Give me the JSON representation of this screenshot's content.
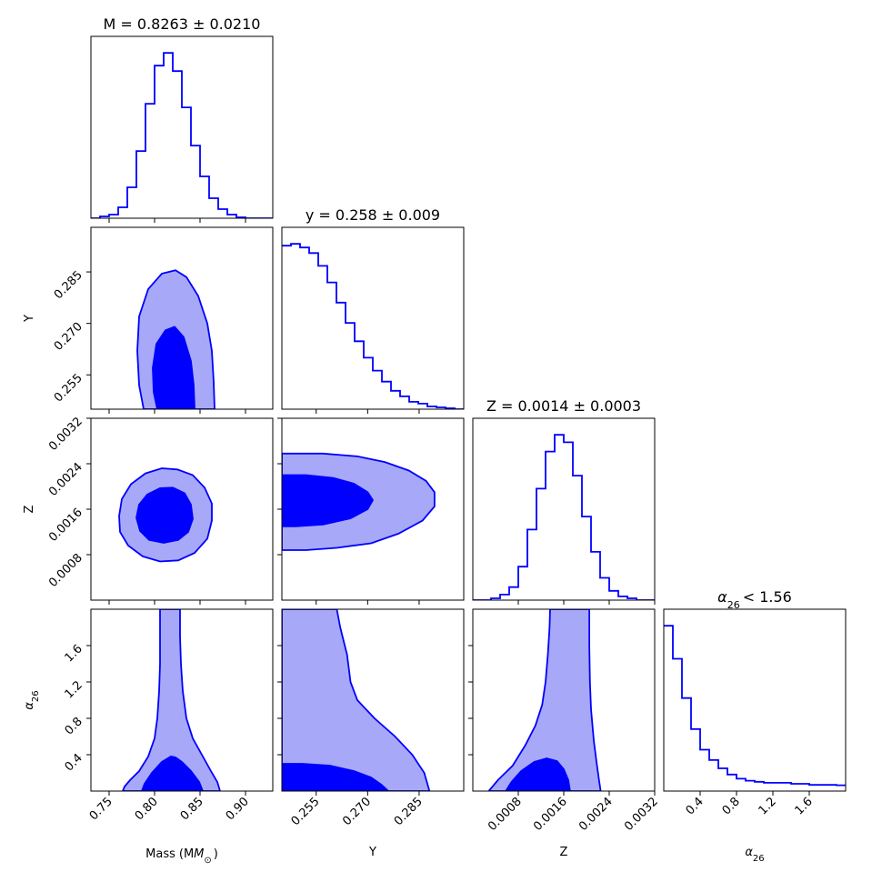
{
  "chart_data": {
    "type": "corner",
    "colors": {
      "line": "#0000ff",
      "fill_outer": "#a8a8f8",
      "fill_inner": "#0000ff",
      "frame": "#000000"
    },
    "titles": {
      "m": "M = 0.8263 ± 0.0210",
      "y": "y = 0.258 ± 0.009",
      "z": "Z = 0.0014 ± 0.0003",
      "a": "< 1.56"
    },
    "axis_labels": {
      "m": "Mass",
      "y": "Y",
      "z": "Z",
      "a": "α",
      "a_sub": "26",
      "m_unit": "(M",
      "m_unit_sub": "⊙",
      "m_unit_close": ")"
    },
    "params": [
      {
        "key": "m",
        "range": [
          0.73,
          0.93
        ],
        "ticks": [
          0.75,
          0.8,
          0.85,
          0.9
        ],
        "tick_labels": [
          "0.75",
          "0.80",
          "0.85",
          "0.90"
        ]
      },
      {
        "key": "y",
        "range": [
          0.245,
          0.298
        ],
        "ticks": [
          0.255,
          0.27,
          0.285
        ],
        "tick_labels": [
          "0.255",
          "0.270",
          "0.285"
        ]
      },
      {
        "key": "z",
        "range": [
          0.0,
          0.0032
        ],
        "ticks": [
          0.0008,
          0.0016,
          0.0024,
          0.0032
        ],
        "tick_labels": [
          "0.0008",
          "0.0016",
          "0.0024",
          "0.0032"
        ]
      },
      {
        "key": "a",
        "range": [
          0.0,
          2.0
        ],
        "ticks": [
          0.4,
          0.8,
          1.2,
          1.6
        ],
        "tick_labels": [
          "0.4",
          "0.8",
          "1.2",
          "1.6"
        ]
      }
    ],
    "histograms": {
      "m": {
        "edges_start": 0.73,
        "bin_width": 0.01,
        "counts": [
          0.0,
          0.01,
          0.02,
          0.06,
          0.17,
          0.37,
          0.63,
          0.84,
          0.91,
          0.81,
          0.61,
          0.4,
          0.23,
          0.11,
          0.05,
          0.02,
          0.005,
          0.0,
          0.0,
          0.0
        ]
      },
      "y": {
        "edges_start": 0.245,
        "bin_width": 0.00265,
        "counts": [
          0.89,
          0.9,
          0.88,
          0.85,
          0.78,
          0.69,
          0.58,
          0.47,
          0.37,
          0.28,
          0.21,
          0.15,
          0.1,
          0.07,
          0.04,
          0.03,
          0.015,
          0.01,
          0.005,
          0.0
        ]
      },
      "z": {
        "edges_start": 0.0,
        "bin_width": 0.00016,
        "counts": [
          0.0,
          0.0,
          0.01,
          0.03,
          0.07,
          0.18,
          0.38,
          0.6,
          0.8,
          0.89,
          0.85,
          0.67,
          0.45,
          0.26,
          0.12,
          0.05,
          0.02,
          0.01,
          0.0,
          0.0
        ]
      },
      "a": {
        "edges_start": 0.0,
        "bin_width": 0.1,
        "counts": [
          0.8,
          0.64,
          0.45,
          0.3,
          0.2,
          0.15,
          0.11,
          0.08,
          0.06,
          0.05,
          0.045,
          0.04,
          0.04,
          0.04,
          0.035,
          0.035,
          0.03,
          0.03,
          0.03,
          0.028
        ]
      }
    },
    "contours": {
      "y_m": {
        "outer": [
          [
            0.788,
            0.245
          ],
          [
            0.783,
            0.252
          ],
          [
            0.781,
            0.262
          ],
          [
            0.783,
            0.272
          ],
          [
            0.793,
            0.28
          ],
          [
            0.808,
            0.2845
          ],
          [
            0.823,
            0.2855
          ],
          [
            0.835,
            0.2835
          ],
          [
            0.848,
            0.278
          ],
          [
            0.858,
            0.27
          ],
          [
            0.863,
            0.262
          ],
          [
            0.865,
            0.253
          ],
          [
            0.866,
            0.245
          ]
        ],
        "inner": [
          [
            0.803,
            0.245
          ],
          [
            0.799,
            0.25
          ],
          [
            0.798,
            0.257
          ],
          [
            0.802,
            0.264
          ],
          [
            0.812,
            0.268
          ],
          [
            0.822,
            0.269
          ],
          [
            0.832,
            0.266
          ],
          [
            0.84,
            0.259
          ],
          [
            0.843,
            0.252
          ],
          [
            0.844,
            0.245
          ]
        ]
      },
      "z_m": {
        "outer": [
          [
            0.761,
            0.00148
          ],
          [
            0.764,
            0.00178
          ],
          [
            0.774,
            0.00204
          ],
          [
            0.79,
            0.00223
          ],
          [
            0.808,
            0.00232
          ],
          [
            0.825,
            0.0023
          ],
          [
            0.842,
            0.0022
          ],
          [
            0.855,
            0.00198
          ],
          [
            0.863,
            0.0017
          ],
          [
            0.863,
            0.0014
          ],
          [
            0.858,
            0.00108
          ],
          [
            0.844,
            0.00083
          ],
          [
            0.826,
            0.0007
          ],
          [
            0.806,
            0.00068
          ],
          [
            0.787,
            0.00077
          ],
          [
            0.771,
            0.00096
          ],
          [
            0.762,
            0.0012
          ]
        ],
        "inner": [
          [
            0.78,
            0.00145
          ],
          [
            0.783,
            0.00168
          ],
          [
            0.792,
            0.00186
          ],
          [
            0.806,
            0.00197
          ],
          [
            0.82,
            0.00198
          ],
          [
            0.833,
            0.00188
          ],
          [
            0.84,
            0.00168
          ],
          [
            0.842,
            0.00143
          ],
          [
            0.837,
            0.0012
          ],
          [
            0.826,
            0.00106
          ],
          [
            0.81,
            0.00101
          ],
          [
            0.794,
            0.00106
          ],
          [
            0.784,
            0.00122
          ]
        ]
      },
      "a_m": {
        "outer": [
          [
            0.765,
            0.0
          ],
          [
            0.767,
            0.05
          ],
          [
            0.773,
            0.12
          ],
          [
            0.783,
            0.22
          ],
          [
            0.793,
            0.38
          ],
          [
            0.8,
            0.58
          ],
          [
            0.803,
            0.8
          ],
          [
            0.805,
            1.1
          ],
          [
            0.806,
            1.4
          ],
          [
            0.806,
            1.7
          ],
          [
            0.806,
            2.0
          ],
          [
            0.828,
            2.0
          ],
          [
            0.828,
            1.7
          ],
          [
            0.829,
            1.4
          ],
          [
            0.831,
            1.1
          ],
          [
            0.835,
            0.8
          ],
          [
            0.842,
            0.58
          ],
          [
            0.852,
            0.4
          ],
          [
            0.862,
            0.22
          ],
          [
            0.869,
            0.1
          ],
          [
            0.872,
            0.0
          ]
        ],
        "inner": [
          [
            0.786,
            0.0
          ],
          [
            0.789,
            0.08
          ],
          [
            0.797,
            0.2
          ],
          [
            0.808,
            0.32
          ],
          [
            0.818,
            0.38
          ],
          [
            0.823,
            0.37
          ],
          [
            0.83,
            0.32
          ],
          [
            0.84,
            0.22
          ],
          [
            0.849,
            0.1
          ],
          [
            0.853,
            0.0
          ]
        ]
      },
      "z_y": {
        "outer": [
          [
            0.245,
            0.00258
          ],
          [
            0.257,
            0.00258
          ],
          [
            0.267,
            0.00253
          ],
          [
            0.275,
            0.00243
          ],
          [
            0.282,
            0.00228
          ],
          [
            0.287,
            0.0021
          ],
          [
            0.2895,
            0.0019
          ],
          [
            0.2895,
            0.00165
          ],
          [
            0.286,
            0.0014
          ],
          [
            0.279,
            0.00117
          ],
          [
            0.271,
            0.001
          ],
          [
            0.261,
            0.00092
          ],
          [
            0.252,
            0.00088
          ],
          [
            0.245,
            0.00088
          ]
        ],
        "inner": [
          [
            0.245,
            0.0022
          ],
          [
            0.252,
            0.0022
          ],
          [
            0.26,
            0.00215
          ],
          [
            0.266,
            0.00205
          ],
          [
            0.27,
            0.0019
          ],
          [
            0.2715,
            0.00176
          ],
          [
            0.27,
            0.0016
          ],
          [
            0.265,
            0.00144
          ],
          [
            0.257,
            0.00133
          ],
          [
            0.249,
            0.0013
          ],
          [
            0.245,
            0.0013
          ]
        ]
      },
      "a_y": {
        "outer": [
          [
            0.245,
            0.0
          ],
          [
            0.245,
            2.0
          ],
          [
            0.261,
            2.0
          ],
          [
            0.262,
            1.8
          ],
          [
            0.264,
            1.5
          ],
          [
            0.265,
            1.2
          ],
          [
            0.267,
            1.0
          ],
          [
            0.272,
            0.8
          ],
          [
            0.278,
            0.6
          ],
          [
            0.283,
            0.4
          ],
          [
            0.2865,
            0.2
          ],
          [
            0.288,
            0.0
          ]
        ],
        "inner": [
          [
            0.245,
            0.0
          ],
          [
            0.245,
            0.3
          ],
          [
            0.251,
            0.3
          ],
          [
            0.259,
            0.28
          ],
          [
            0.266,
            0.22
          ],
          [
            0.271,
            0.15
          ],
          [
            0.274,
            0.07
          ],
          [
            0.276,
            0.0
          ]
        ]
      },
      "a_z": {
        "outer": [
          [
            0.00028,
            0.0
          ],
          [
            0.00044,
            0.12
          ],
          [
            0.0007,
            0.28
          ],
          [
            0.00092,
            0.5
          ],
          [
            0.0011,
            0.72
          ],
          [
            0.00122,
            0.95
          ],
          [
            0.00128,
            1.2
          ],
          [
            0.00132,
            1.5
          ],
          [
            0.00135,
            1.8
          ],
          [
            0.00136,
            2.0
          ],
          [
            0.00205,
            2.0
          ],
          [
            0.00205,
            1.6
          ],
          [
            0.00206,
            1.2
          ],
          [
            0.00208,
            0.9
          ],
          [
            0.00213,
            0.55
          ],
          [
            0.00218,
            0.3
          ],
          [
            0.00222,
            0.12
          ],
          [
            0.00225,
            0.0
          ]
        ],
        "inner": [
          [
            0.00058,
            0.0
          ],
          [
            0.00068,
            0.1
          ],
          [
            0.00085,
            0.22
          ],
          [
            0.00108,
            0.32
          ],
          [
            0.0013,
            0.36
          ],
          [
            0.00148,
            0.33
          ],
          [
            0.0016,
            0.24
          ],
          [
            0.00168,
            0.12
          ],
          [
            0.00171,
            0.0
          ]
        ]
      }
    }
  }
}
